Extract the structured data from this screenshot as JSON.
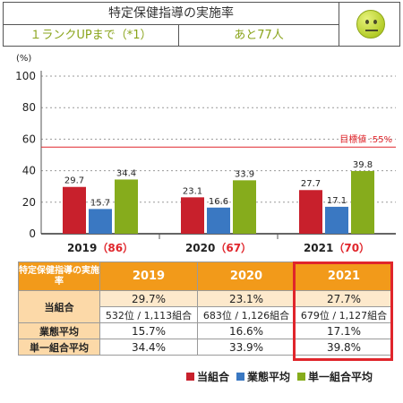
{
  "header": {
    "title": "特定保健指導の実施率",
    "rank_up_label": "１ランクUPまで（*1）",
    "remaining": "あと77人"
  },
  "status_icon": "neutral-face-icon",
  "colors": {
    "own": "#c8202c",
    "industry": "#3a78c2",
    "single": "#86ac1c",
    "target_line": "#e0252b",
    "table_header": "#f29a1a",
    "highlight": "#e0252b"
  },
  "chart_data": {
    "type": "bar",
    "unit_label": "(%)",
    "categories": [
      "2019",
      "2020",
      "2021"
    ],
    "category_ranks": [
      "（86）",
      "（67）",
      "（70）"
    ],
    "series": [
      {
        "name": "当組合",
        "values": [
          29.7,
          23.1,
          27.7
        ]
      },
      {
        "name": "業態平均",
        "values": [
          15.7,
          16.6,
          17.1
        ]
      },
      {
        "name": "単一組合平均",
        "values": [
          34.4,
          33.9,
          39.8
        ]
      }
    ],
    "ylim": [
      0,
      100
    ],
    "yticks": [
      0,
      20,
      40,
      60,
      80,
      100
    ],
    "target": {
      "value": 55,
      "label": "目標値 :55%"
    },
    "grid": "dotted horizontal"
  },
  "table": {
    "corner_label": "特定保健指導の実施率",
    "years": [
      "2019",
      "2020",
      "2021"
    ],
    "rows": {
      "own": {
        "label": "当組合",
        "values": [
          "29.7%",
          "23.1%",
          "27.7%"
        ],
        "ranks": [
          "532位 / 1,113組合",
          "683位 / 1,126組合",
          "679位 / 1,127組合"
        ]
      },
      "industry": {
        "label": "業態平均",
        "values": [
          "15.7%",
          "16.6%",
          "17.1%"
        ]
      },
      "single": {
        "label": "単一組合平均",
        "values": [
          "34.4%",
          "33.9%",
          "39.8%"
        ]
      }
    }
  },
  "legend": [
    "当組合",
    "業態平均",
    "単一組合平均"
  ]
}
